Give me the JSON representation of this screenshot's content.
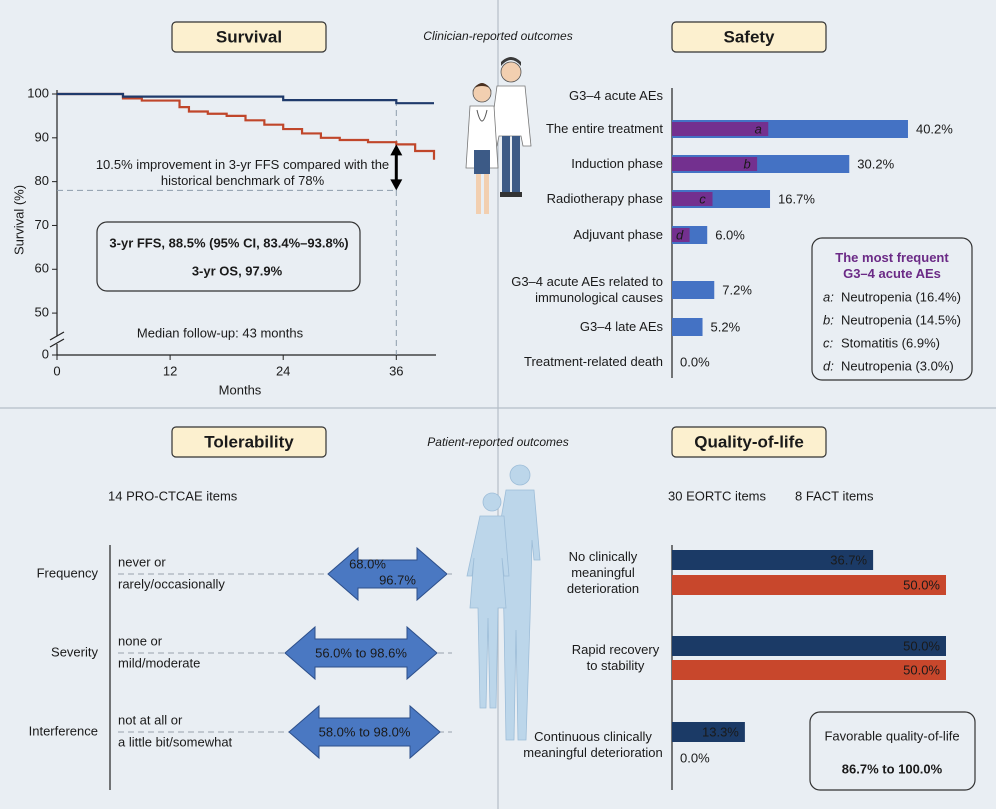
{
  "headers": {
    "clinician": "Clinician-reported outcomes",
    "patient": "Patient-reported outcomes"
  },
  "chart_data": [
    {
      "type": "line",
      "title": "Survival",
      "xlabel": "Months",
      "ylabel": "Survival (%)",
      "xlim": [
        0,
        40
      ],
      "xticks": [
        0,
        12,
        24,
        36
      ],
      "ylim": [
        0,
        100
      ],
      "yticks": [
        0,
        50,
        60,
        70,
        80,
        90,
        100
      ],
      "axis_break": [
        0,
        45
      ],
      "step": true,
      "series": [
        {
          "name": "3-yr FFS, 88.5% (95% CI, 83.4%–93.8%)",
          "color": "#c0462a",
          "x": [
            0,
            7,
            9,
            13,
            14,
            16,
            18,
            20,
            22,
            24,
            26,
            28,
            30,
            33,
            36,
            38,
            40
          ],
          "values": [
            100,
            99,
            98.5,
            97,
            96,
            95.5,
            95,
            94,
            93,
            92,
            91,
            90,
            89.5,
            89,
            88.5,
            87,
            85
          ]
        },
        {
          "name": "3-yr OS, 97.9%",
          "color": "#1f3a6b",
          "x": [
            0,
            7,
            24,
            36,
            40
          ],
          "values": [
            100,
            99.4,
            98.6,
            97.9,
            97.9
          ]
        }
      ],
      "benchmark": 78,
      "landmark_x": 36,
      "annotations": {
        "improvement": "10.5% improvement in 3-yr FFS compared with the historical benchmark of 78%",
        "follow_up": "Median follow-up: 43 months"
      }
    },
    {
      "type": "bar",
      "orientation": "horizontal",
      "title": "Safety",
      "categories": [
        "G3–4 acute AEs",
        "The entire treatment",
        "Induction phase",
        "Radiotherapy phase",
        "Adjuvant phase",
        "G3–4 acute AEs related to immunological causes",
        "G3–4 late AEs",
        "Treatment-related death"
      ],
      "values": [
        null,
        40.2,
        30.2,
        16.7,
        6.0,
        7.2,
        5.2,
        0.0
      ],
      "value_labels": [
        null,
        "40.2%",
        "30.2%",
        "16.7%",
        "6.0%",
        "7.2%",
        "5.2%",
        "0.0%"
      ],
      "color": "#4472c4",
      "inner": {
        "color": "#73308f",
        "letters": [
          null,
          "a",
          "b",
          "c",
          "d",
          null,
          null,
          null
        ],
        "values": [
          null,
          16.4,
          14.5,
          6.9,
          3.0,
          null,
          null,
          null
        ]
      },
      "legend": {
        "title": "The most frequent G3–4 acute AEs",
        "items": [
          {
            "key": "a:",
            "text": "Neutropenia (16.4%)"
          },
          {
            "key": "b:",
            "text": "Neutropenia (14.5%)"
          },
          {
            "key": "c:",
            "text": "Stomatitis (6.9%)"
          },
          {
            "key": "d:",
            "text": "Neutropenia (3.0%)"
          }
        ]
      }
    },
    {
      "type": "bar",
      "orientation": "horizontal",
      "title": "Quality-of-life",
      "categories": [
        "No clinically meaningful deterioration",
        "Rapid recovery to stability",
        "Continuous clinically meaningful deterioration"
      ],
      "series": [
        {
          "name": "30 EORTC items",
          "color": "#1b3a66",
          "values": [
            36.7,
            50.0,
            13.3
          ],
          "value_labels": [
            "36.7%",
            "50.0%",
            "13.3%"
          ]
        },
        {
          "name": "8 FACT items",
          "color": "#c8472c",
          "values": [
            50.0,
            50.0,
            0.0
          ],
          "value_labels": [
            "50.0%",
            "50.0%",
            "0.0%"
          ]
        }
      ],
      "summary": {
        "title": "Favorable quality-of-life",
        "value": "86.7% to 100.0%"
      }
    }
  ],
  "tolerability": {
    "title": "Tolerability",
    "subtitle": "14 PRO-CTCAE items",
    "rows": [
      {
        "domain": "Frequency",
        "response": [
          "never or",
          "rarely/occasionally"
        ],
        "range": [
          "68.0%",
          "96.7%"
        ]
      },
      {
        "domain": "Severity",
        "response": [
          "none or",
          "mild/moderate"
        ],
        "range": [
          "56.0% to 98.6%"
        ]
      },
      {
        "domain": "Interference",
        "response": [
          "not at all or",
          "a little bit/somewhat"
        ],
        "range": [
          "58.0% to 98.0%"
        ]
      }
    ]
  }
}
